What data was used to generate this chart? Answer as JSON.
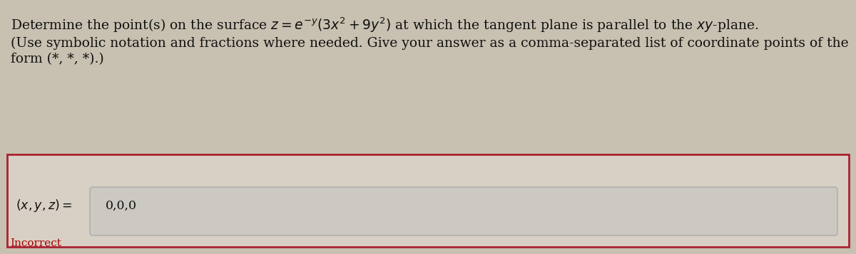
{
  "bg_color": "#c8c0b0",
  "text_color": "#111111",
  "line1": "Determine the point(s) on the surface $z = e^{-y}(3x^2 + 9y^2)$ at which the tangent plane is parallel to the $xy$-plane.",
  "line2": "(Use symbolic notation and fractions where needed. Give your answer as a comma-separated list of coordinate points of the",
  "line3": "form (*, *, *).)",
  "label_text": "$(x, y, z) =$",
  "answer_text": "0,0,0",
  "incorrect_text": "Incorrect",
  "incorrect_color": "#aa0000",
  "outer_box_edgecolor": "#aa2233",
  "outer_box_facecolor": "#d8d0c4",
  "input_box_facecolor": "#ccc8c2",
  "input_box_edgecolor": "#aaaaaa",
  "font_size_main": 13.5,
  "font_size_label": 12.5,
  "font_size_incorrect": 11
}
